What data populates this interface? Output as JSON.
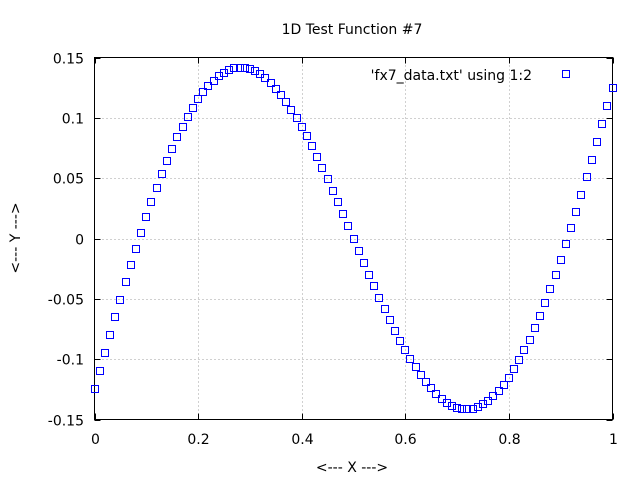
{
  "chart_data": {
    "type": "scatter",
    "title": "1D Test Function #7",
    "xlabel": "<--- X --->",
    "ylabel": "<--- Y --->",
    "xlim": [
      0,
      1
    ],
    "ylim": [
      -0.15,
      0.15
    ],
    "xticks": [
      0,
      0.2,
      0.4,
      0.6,
      0.8,
      1
    ],
    "xtick_labels": [
      "0",
      "0.2",
      "0.4",
      "0.6",
      "0.8",
      "1"
    ],
    "yticks": [
      -0.15,
      -0.1,
      -0.05,
      0,
      0.05,
      0.1,
      0.15
    ],
    "ytick_labels": [
      "-0.15",
      "-0.1",
      "-0.05",
      "0",
      "0.05",
      "0.1",
      "0.15"
    ],
    "grid": true,
    "legend_position": "top-right",
    "series": [
      {
        "name": "'fx7_data.txt' using 1:2",
        "color": "#0000ff",
        "marker": "open-square",
        "x_start": 0,
        "x_step": 0.01,
        "y": [
          -0.125,
          -0.1099,
          -0.0949,
          -0.08,
          -0.0653,
          -0.0507,
          -0.0364,
          -0.0223,
          -0.0086,
          0.0047,
          0.0176,
          0.03,
          0.0419,
          0.0533,
          0.0641,
          0.0743,
          0.0839,
          0.0928,
          0.101,
          0.1085,
          0.1152,
          0.1212,
          0.1265,
          0.1309,
          0.1346,
          0.1375,
          0.1396,
          0.1409,
          0.1415,
          0.1412,
          0.1402,
          0.1385,
          0.136,
          0.1328,
          0.1289,
          0.1243,
          0.1191,
          0.1133,
          0.1069,
          0.1,
          0.0926,
          0.0847,
          0.0764,
          0.0677,
          0.0586,
          0.0493,
          0.0397,
          0.03,
          0.0201,
          0.0101,
          0,
          -0.0101,
          -0.0201,
          -0.03,
          -0.0397,
          -0.0493,
          -0.0586,
          -0.0677,
          -0.0764,
          -0.0847,
          -0.0926,
          -0.1,
          -0.1069,
          -0.1133,
          -0.1191,
          -0.1243,
          -0.1289,
          -0.1328,
          -0.136,
          -0.1385,
          -0.1402,
          -0.1412,
          -0.1415,
          -0.1409,
          -0.1396,
          -0.1375,
          -0.1346,
          -0.1309,
          -0.1265,
          -0.1212,
          -0.1152,
          -0.1085,
          -0.101,
          -0.0928,
          -0.0839,
          -0.0743,
          -0.0641,
          -0.0533,
          -0.0419,
          -0.03,
          -0.0176,
          -0.0047,
          0.0086,
          0.0223,
          0.0364,
          0.0507,
          0.0653,
          0.08,
          0.0949,
          0.1099,
          0.125
        ]
      }
    ]
  }
}
